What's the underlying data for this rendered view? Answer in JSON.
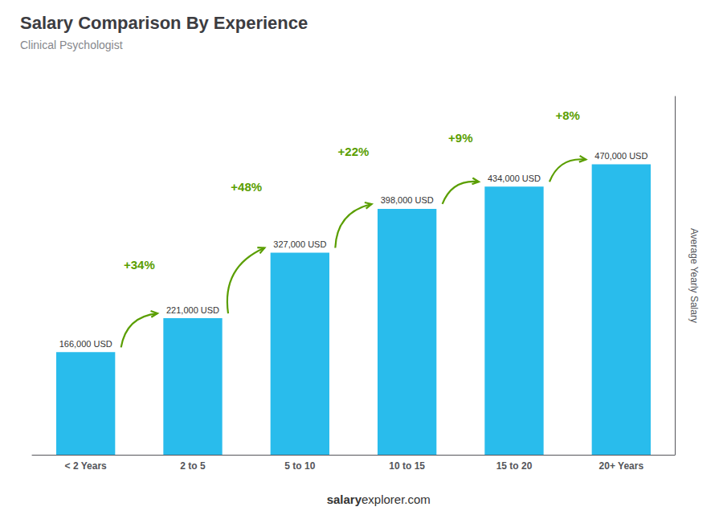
{
  "chart_data": {
    "type": "bar",
    "title": "Salary Comparison By Experience",
    "subtitle": "Clinical Psychologist",
    "categories": [
      "< 2 Years",
      "2 to 5",
      "5 to 10",
      "10 to 15",
      "15 to 20",
      "20+ Years"
    ],
    "values": [
      166000,
      221000,
      327000,
      398000,
      434000,
      470000
    ],
    "value_labels": [
      "166,000 USD",
      "221,000 USD",
      "327,000 USD",
      "398,000 USD",
      "434,000 USD",
      "470,000 USD"
    ],
    "data_labels": true,
    "color": "#29BCEC",
    "ylabel": "Average Yearly Salary",
    "annotations": [
      "+34%",
      "+48%",
      "+22%",
      "+9%",
      "+8%"
    ],
    "footer": [
      "salary",
      "explorer.com"
    ],
    "ylim": [
      0,
      580000
    ],
    "grid": false,
    "tick_labels": "x"
  }
}
